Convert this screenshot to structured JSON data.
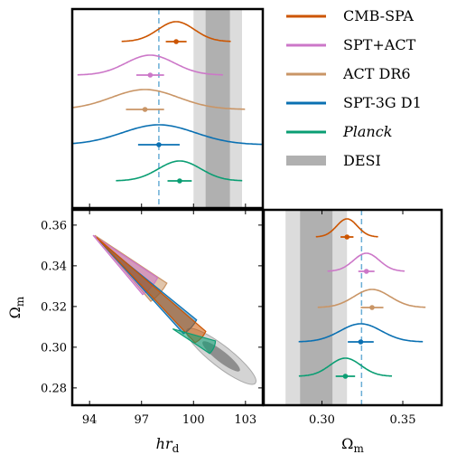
{
  "chart_data": {
    "type": "corner-plot",
    "parameters": [
      {
        "key": "hrd",
        "label": "hr",
        "label_sub": "d",
        "ticks": [
          94,
          97,
          100,
          103
        ],
        "range": [
          93,
          104
        ]
      },
      {
        "key": "om",
        "label": "Ω",
        "label_sub": "m",
        "ticks": [
          0.3,
          0.35
        ],
        "tick_labels": [
          "0.30",
          "0.35"
        ],
        "range": [
          0.264,
          0.374
        ]
      }
    ],
    "om_axis_ticks": [
      0.28,
      0.3,
      0.32,
      0.34,
      0.36
    ],
    "om_axis_tick_labels": [
      "0.28",
      "0.30",
      "0.32",
      "0.34",
      "0.36"
    ],
    "series": [
      {
        "name": "CMB-SPA",
        "color": "#cc5500",
        "italic": false,
        "hrd_mean": 99.0,
        "hrd_err": 0.6,
        "om_mean": 0.3155,
        "om_err": 0.004,
        "banana": {
          "x1": 94.4,
          "y1": 0.354,
          "x2": 100.4,
          "y2": 0.305,
          "width": 0.9
        }
      },
      {
        "name": "SPT+ACT",
        "color": "#cc77c8",
        "italic": false,
        "hrd_mean": 97.5,
        "hrd_err": 0.8,
        "om_mean": 0.3275,
        "om_err": 0.005,
        "banana": {
          "x1": 94.2,
          "y1": 0.355,
          "x2": 97.5,
          "y2": 0.33,
          "width": 1.3
        }
      },
      {
        "name": "ACT DR6",
        "color": "#c99566",
        "italic": false,
        "hrd_mean": 97.2,
        "hrd_err": 1.1,
        "om_mean": 0.331,
        "om_err": 0.007,
        "banana": {
          "x1": 94.3,
          "y1": 0.355,
          "x2": 98.0,
          "y2": 0.327,
          "width": 1.4
        }
      },
      {
        "name": "SPT-3G D1",
        "color": "#0a70b2",
        "italic": false,
        "hrd_mean": 98.0,
        "hrd_err": 1.2,
        "om_mean": 0.324,
        "om_err": 0.008,
        "banana": {
          "x1": 94.6,
          "y1": 0.352,
          "x2": 99.8,
          "y2": 0.31,
          "width": 1.1
        }
      },
      {
        "name": "Planck",
        "color": "#0a9e73",
        "italic": true,
        "hrd_mean": 99.2,
        "hrd_err": 0.7,
        "om_mean": 0.3145,
        "om_err": 0.006,
        "banana": {
          "x1": 98.8,
          "y1": 0.309,
          "x2": 101.1,
          "y2": 0.3,
          "width": 0.8
        }
      }
    ],
    "desi": {
      "name": "DESI",
      "hrd_1sigma": [
        100.7,
        102.1
      ],
      "hrd_2sigma": [
        100.0,
        102.8
      ],
      "om_1sigma": [
        0.2865,
        0.3065
      ],
      "om_2sigma": [
        0.2775,
        0.3155
      ],
      "ellipse_center": [
        101.6,
        0.2955
      ],
      "ellipse_angle": -38
    },
    "reference": {
      "hrd": 98.0,
      "om": 0.3245,
      "style": "dashed",
      "color": "#6aaed6"
    }
  }
}
